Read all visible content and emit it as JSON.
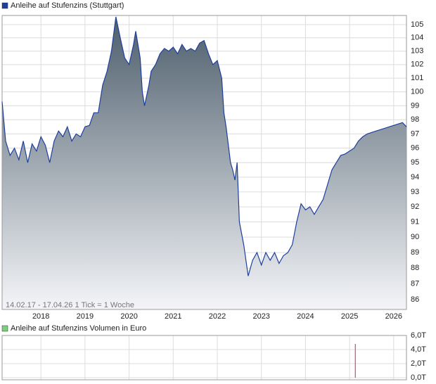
{
  "chart_data": [
    {
      "type": "area",
      "log_scale": true,
      "grid": true,
      "note": "14.02.17 - 17.04.26   1 Tick = 1 Woche",
      "x": [
        2017.12,
        2017.2,
        2017.3,
        2017.4,
        2017.5,
        2017.6,
        2017.7,
        2017.8,
        2017.9,
        2018.0,
        2018.1,
        2018.2,
        2018.3,
        2018.4,
        2018.5,
        2018.6,
        2018.7,
        2018.8,
        2018.9,
        2019.0,
        2019.1,
        2019.2,
        2019.3,
        2019.4,
        2019.5,
        2019.6,
        2019.7,
        2019.8,
        2019.9,
        2020.0,
        2020.1,
        2020.15,
        2020.25,
        2020.3,
        2020.35,
        2020.45,
        2020.5,
        2020.6,
        2020.7,
        2020.8,
        2020.9,
        2021.0,
        2021.1,
        2021.2,
        2021.3,
        2021.4,
        2021.5,
        2021.6,
        2021.7,
        2021.8,
        2021.9,
        2022.0,
        2022.1,
        2022.15,
        2022.2,
        2022.3,
        2022.35,
        2022.4,
        2022.45,
        2022.5,
        2022.6,
        2022.7,
        2022.8,
        2022.9,
        2023.0,
        2023.1,
        2023.2,
        2023.3,
        2023.4,
        2023.5,
        2023.6,
        2023.7,
        2023.8,
        2023.9,
        2024.0,
        2024.1,
        2024.2,
        2024.3,
        2024.4,
        2024.5,
        2024.6,
        2024.7,
        2024.8,
        2024.9,
        2025.0,
        2025.1,
        2025.2,
        2025.3,
        2025.4,
        2025.5,
        2025.6,
        2025.7,
        2025.8,
        2025.9,
        2026.0,
        2026.1,
        2026.2,
        2026.29
      ],
      "series": [
        {
          "name": "Anleihe auf Stufenzins (Stuttgart)",
          "color": "#1f3f9e",
          "values": [
            99.3,
            96.5,
            95.5,
            96.0,
            95.2,
            96.5,
            95.0,
            96.3,
            95.8,
            96.8,
            96.2,
            95.0,
            96.5,
            97.2,
            96.8,
            97.5,
            96.5,
            97.0,
            96.8,
            97.5,
            97.6,
            98.5,
            98.5,
            100.5,
            101.5,
            103.0,
            105.6,
            104.0,
            102.5,
            102.0,
            103.5,
            104.5,
            102.5,
            100.0,
            99.0,
            100.5,
            101.5,
            102.0,
            102.8,
            103.2,
            103.0,
            103.3,
            102.8,
            103.5,
            103.0,
            103.2,
            103.0,
            103.6,
            103.8,
            102.8,
            102.0,
            102.3,
            101.0,
            98.5,
            97.5,
            95.0,
            94.5,
            93.8,
            95.0,
            91.0,
            89.5,
            87.5,
            88.5,
            89.0,
            88.2,
            89.0,
            88.5,
            89.0,
            88.3,
            88.8,
            89.0,
            89.5,
            91.0,
            92.2,
            91.8,
            92.0,
            91.5,
            92.0,
            92.5,
            93.5,
            94.5,
            95.0,
            95.5,
            95.6,
            95.8,
            96.0,
            96.5,
            96.8,
            97.0,
            97.1,
            97.2,
            97.3,
            97.4,
            97.5,
            97.6,
            97.7,
            97.8,
            97.5
          ]
        }
      ],
      "xlim": [
        2017.12,
        2026.29
      ],
      "xticks": [
        2018,
        2019,
        2020,
        2021,
        2022,
        2023,
        2024,
        2025,
        2026
      ],
      "ylim": [
        85.4,
        105.7
      ],
      "yticks": [
        86,
        87,
        88,
        89,
        90,
        91,
        92,
        93,
        94,
        95,
        96,
        97,
        98,
        99,
        100,
        101,
        102,
        103,
        104,
        105
      ]
    },
    {
      "type": "bar",
      "grid": true,
      "x": [
        2025.13
      ],
      "series": [
        {
          "name": "Anleihe auf Stufenzins Volumen in Euro",
          "color": "#c0506a",
          "values": [
            4.8
          ]
        }
      ],
      "xlim": [
        2017.12,
        2026.29
      ],
      "xticks": [
        2018,
        2019,
        2020,
        2021,
        2022,
        2023,
        2024,
        2025,
        2026
      ],
      "ylim": [
        0,
        6
      ],
      "yticks": [
        {
          "value": 6,
          "label": "6,0T"
        },
        {
          "value": 4,
          "label": "4,0T"
        },
        {
          "value": 2,
          "label": "2,0T"
        },
        {
          "value": 0,
          "label": "0,0T"
        }
      ]
    }
  ]
}
